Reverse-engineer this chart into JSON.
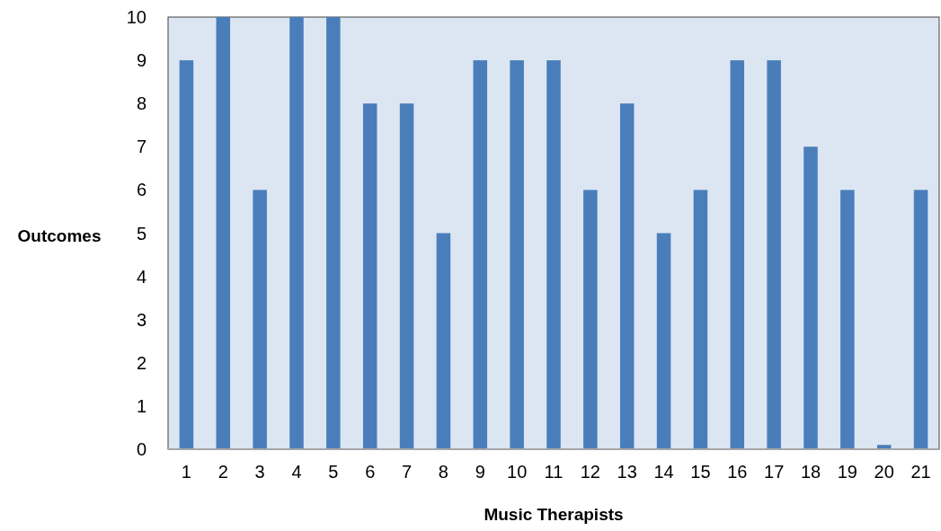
{
  "chart_data": {
    "type": "bar",
    "xlabel": "Music Therapists",
    "ylabel": "Outcomes",
    "categories": [
      "1",
      "2",
      "3",
      "4",
      "5",
      "6",
      "7",
      "8",
      "9",
      "10",
      "11",
      "12",
      "13",
      "14",
      "15",
      "16",
      "17",
      "18",
      "19",
      "20",
      "21"
    ],
    "values": [
      9,
      10,
      6,
      10,
      10,
      8,
      8,
      5,
      9,
      9,
      9,
      6,
      8,
      5,
      6,
      9,
      9,
      7,
      6,
      0.1,
      6
    ],
    "color": "#4a7ebb",
    "ylim": [
      0,
      10
    ],
    "yticks": [
      0,
      1,
      2,
      3,
      4,
      5,
      6,
      7,
      8,
      9,
      10
    ],
    "grid": false
  }
}
